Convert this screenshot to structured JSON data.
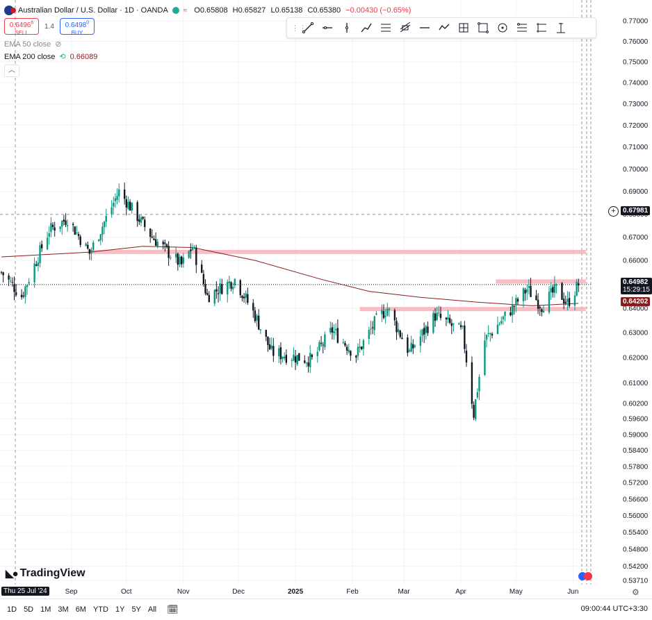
{
  "header": {
    "symbol_title": "Australian Dollar / U.S. Dollar · 1D · OANDA",
    "open": "O0.65808",
    "high": "H0.65827",
    "low": "L0.65138",
    "close": "C0.65380",
    "change": "−0.00430 (−0.65%)",
    "sell_price": "0.6496",
    "sell_sup": "6",
    "sell_label": "SELL",
    "spread": "1.4",
    "buy_price": "0.6498",
    "buy_sup": "0",
    "buy_label": "BUY",
    "ema50_label": "EMA 50 close",
    "ema200_label": "EMA 200 close",
    "ema200_value": "0.66089",
    "collapse_icon": "chevron-up-icon"
  },
  "toolbar": {
    "tools": [
      "trend-line-icon",
      "horizontal-ray-icon",
      "vertical-line-icon",
      "path-icon",
      "parallel-channel-icon",
      "pitchfork-icon",
      "horizontal-line-icon",
      "polyline-icon",
      "long-position-icon",
      "rectangle-icon",
      "circle-icon",
      "fib-retracement-icon",
      "flag-icon",
      "measure-icon"
    ]
  },
  "price_labels": {
    "crosshair": "0.67981",
    "current": "0.64982",
    "countdown": "15:29:15",
    "ema": "0.64202"
  },
  "bottom": {
    "ranges": [
      "1D",
      "5D",
      "1M",
      "3M",
      "6M",
      "YTD",
      "1Y",
      "5Y",
      "All"
    ],
    "clock": "09:00:44 UTC+3:30",
    "logo": "TradingView",
    "cursor_date": "Thu 25 Jul '24"
  },
  "colors": {
    "up": "#089981",
    "down": "#131722",
    "ema200": "#8b1a1a",
    "zone": "#f7a8b0",
    "current_line": "#131722",
    "ema_box": "#8b1a1a"
  },
  "chart_data": {
    "type": "candlestick",
    "title": "Australian Dollar / U.S. Dollar · 1D · OANDA",
    "ylim": [
      0.5371,
      0.777
    ],
    "y_ticks": [
      "0.77000",
      "0.76000",
      "0.75000",
      "0.74000",
      "0.73000",
      "0.72000",
      "0.71000",
      "0.70000",
      "0.69000",
      "0.68000",
      "0.67000",
      "0.66000",
      "0.64000",
      "0.63000",
      "0.62000",
      "0.61000",
      "0.60200",
      "0.59600",
      "0.59000",
      "0.58400",
      "0.57800",
      "0.57200",
      "0.56600",
      "0.56000",
      "0.55400",
      "0.54800",
      "0.54200",
      "0.53710"
    ],
    "x_ticks": [
      "Sep",
      "Oct",
      "Nov",
      "Dec",
      "2025",
      "Feb",
      "Mar",
      "Apr",
      "May",
      "Jun"
    ],
    "anchors": [
      {
        "d": "Jul 25",
        "p": 0.655
      },
      {
        "d": "Aug 5",
        "p": 0.645
      },
      {
        "d": "Aug 20",
        "p": 0.673
      },
      {
        "d": "Aug 30",
        "p": 0.678
      },
      {
        "d": "Sep 11",
        "p": 0.663
      },
      {
        "d": "Sep 27",
        "p": 0.69
      },
      {
        "d": "Oct 15",
        "p": 0.67
      },
      {
        "d": "Oct 31",
        "p": 0.658
      },
      {
        "d": "Nov 6",
        "p": 0.666
      },
      {
        "d": "Nov 14",
        "p": 0.645
      },
      {
        "d": "Nov 29",
        "p": 0.652
      },
      {
        "d": "Dec 10",
        "p": 0.637
      },
      {
        "d": "Dec 19",
        "p": 0.622
      },
      {
        "d": "Jan 10",
        "p": 0.619
      },
      {
        "d": "Jan 21",
        "p": 0.631
      },
      {
        "d": "Feb 3",
        "p": 0.621
      },
      {
        "d": "Feb 14",
        "p": 0.635
      },
      {
        "d": "Feb 20",
        "p": 0.64
      },
      {
        "d": "Mar 4",
        "p": 0.622
      },
      {
        "d": "Mar 18",
        "p": 0.637
      },
      {
        "d": "Apr 2",
        "p": 0.63
      },
      {
        "d": "Apr 8",
        "p": 0.598
      },
      {
        "d": "Apr 14",
        "p": 0.627
      },
      {
        "d": "Apr 30",
        "p": 0.641
      },
      {
        "d": "May 7",
        "p": 0.648
      },
      {
        "d": "May 15",
        "p": 0.641
      },
      {
        "d": "May 23",
        "p": 0.648
      },
      {
        "d": "May 29",
        "p": 0.642
      },
      {
        "d": "Jun 4",
        "p": 0.65
      }
    ],
    "ema200": [
      {
        "d": "Jul 25",
        "p": 0.6615
      },
      {
        "d": "Sep 11",
        "p": 0.6635
      },
      {
        "d": "Oct 10",
        "p": 0.666
      },
      {
        "d": "Nov 6",
        "p": 0.6655
      },
      {
        "d": "Dec 10",
        "p": 0.66
      },
      {
        "d": "Jan 15",
        "p": 0.652
      },
      {
        "d": "Feb 10",
        "p": 0.647
      },
      {
        "d": "Mar 10",
        "p": 0.6445
      },
      {
        "d": "Apr 10",
        "p": 0.6425
      },
      {
        "d": "May 10",
        "p": 0.641
      },
      {
        "d": "Jun 4",
        "p": 0.642
      }
    ],
    "zones": [
      {
        "from": "Sep 10",
        "to": "Jun 8",
        "low": 0.663,
        "high": 0.6645
      },
      {
        "from": "Apr 20",
        "to": "Jun 8",
        "low": 0.6502,
        "high": 0.652
      },
      {
        "from": "Feb 5",
        "to": "Jun 8",
        "low": 0.6388,
        "high": 0.6405
      }
    ],
    "crosshair_price": 0.67981,
    "last_price": 0.64982,
    "ema_last": 0.64202,
    "grid": true,
    "log_scale": true
  }
}
